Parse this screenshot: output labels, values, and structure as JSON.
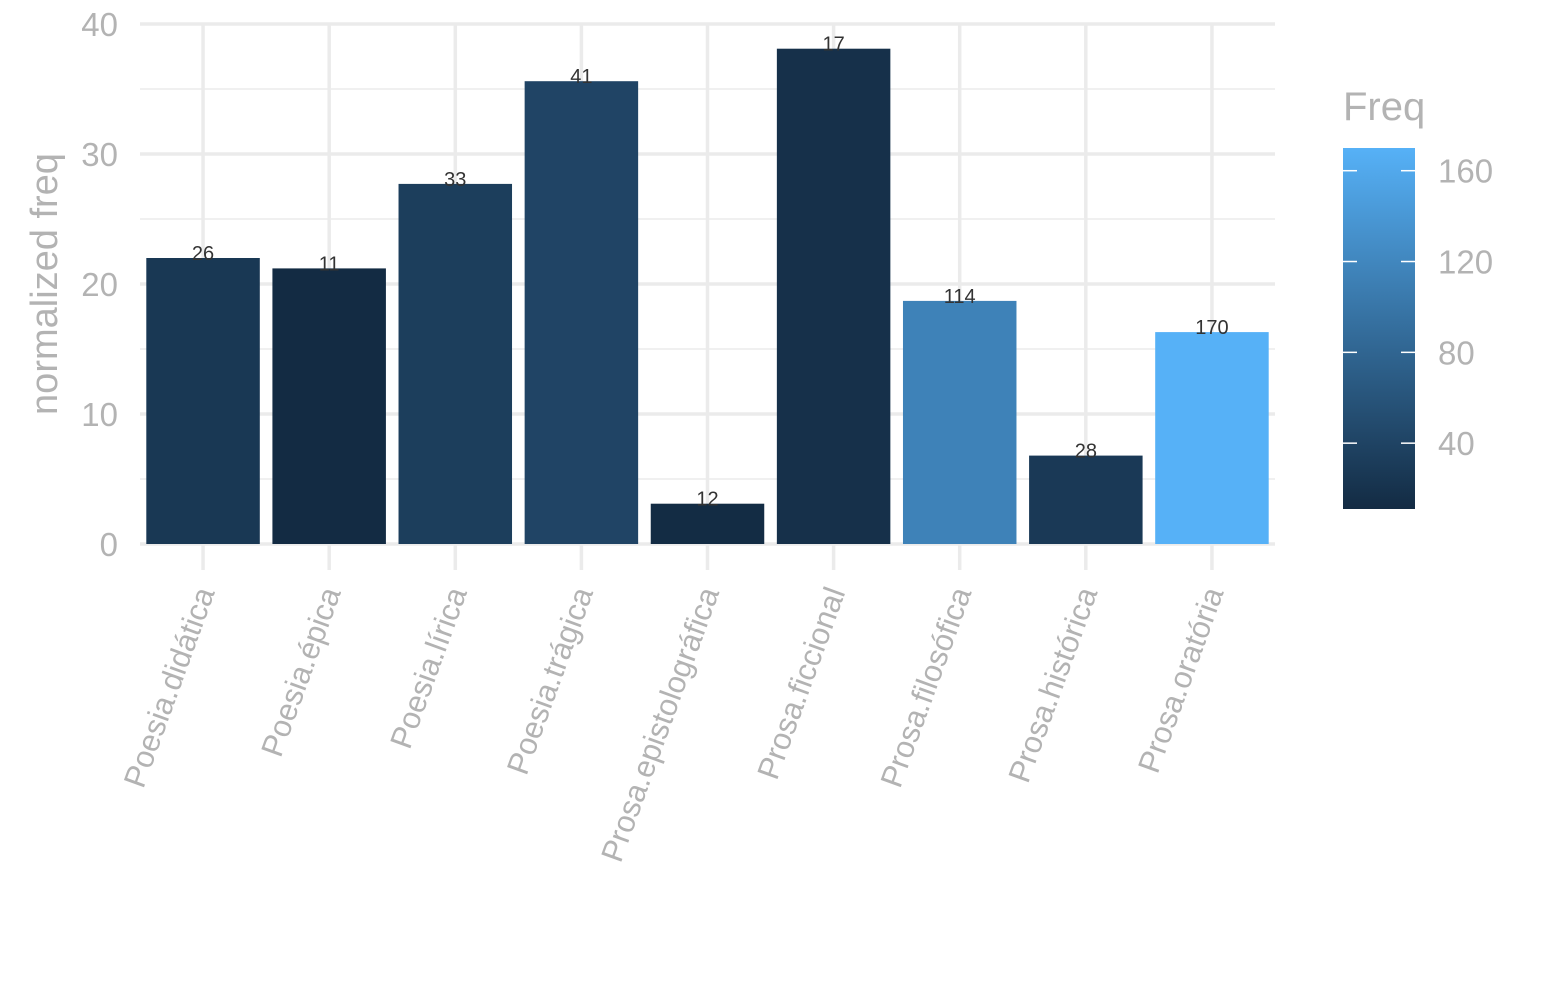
{
  "chart_data": {
    "type": "bar",
    "categories": [
      "Poesia.didática",
      "Poesia.épica",
      "Poesia.lírica",
      "Poesia.trágica",
      "Prosa.epistolográfica",
      "Prosa.ficcional",
      "Prosa.filosófica",
      "Prosa.histórica",
      "Prosa.oratória"
    ],
    "values": [
      22.0,
      21.2,
      27.7,
      35.6,
      3.1,
      38.1,
      18.7,
      6.8,
      16.3
    ],
    "freq": [
      26,
      11,
      33,
      41,
      12,
      17,
      114,
      28,
      170
    ],
    "ylabel": "normalized freq",
    "xlabel": "",
    "ylim": [
      0,
      40
    ],
    "yticks": [
      "0",
      "10",
      "20",
      "30",
      "40"
    ],
    "grid": true,
    "legend": {
      "title": "Freq",
      "position": "right",
      "type": "colorbar",
      "range": [
        11,
        170
      ],
      "ticks": [
        "40",
        "80",
        "120",
        "160"
      ],
      "low_color": "#132b43",
      "high_color": "#56b1f7"
    }
  }
}
